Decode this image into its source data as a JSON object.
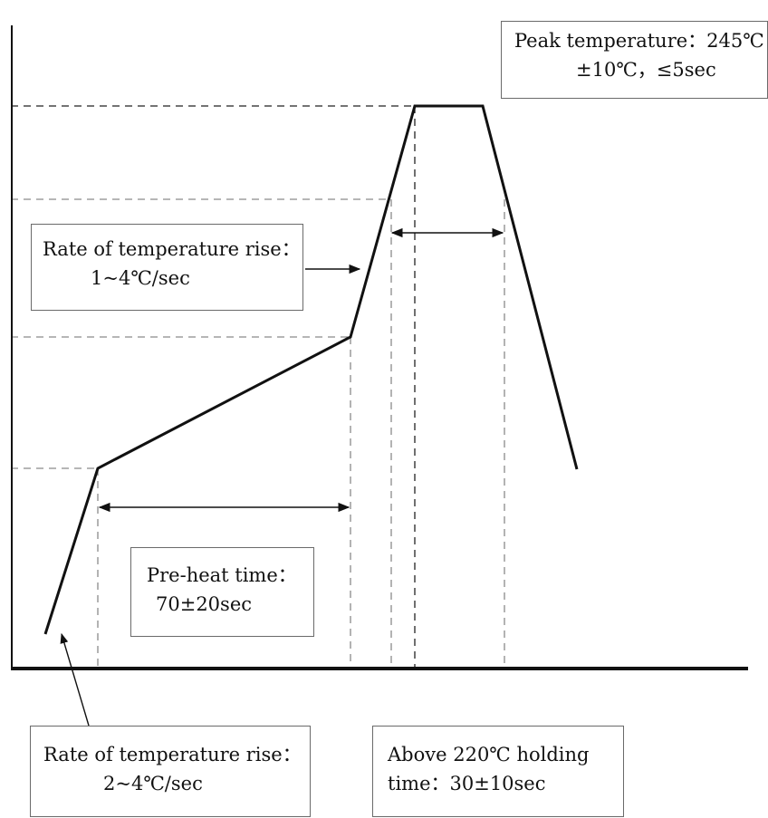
{
  "peak_box": {
    "line1": "Peak temperature：245℃",
    "line2": "±10℃，≤5sec"
  },
  "ramp_box": {
    "line1": "Rate of temperature rise：",
    "line2": "1~4℃/sec"
  },
  "preheat_box": {
    "line1": "Pre-heat time：",
    "line2": "70±20sec"
  },
  "initial_ramp_box": {
    "line1": "Rate of temperature rise：",
    "line2": "2~4℃/sec"
  },
  "hold_box": {
    "line1": "Above 220℃  holding",
    "line2": "time：30±10sec"
  },
  "colors": {
    "profile_line": "#111111",
    "guide_dash_light": "#8a8a8a",
    "guide_dash_dark": "#222222",
    "box_border": "#6a6a6a"
  }
}
